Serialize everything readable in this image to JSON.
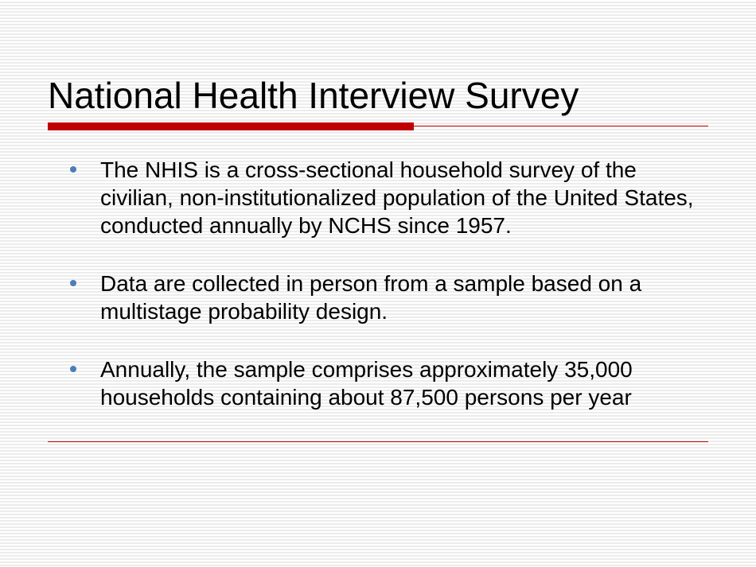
{
  "slide": {
    "title": "National Health Interview Survey",
    "title_color": "#000000",
    "title_fontsize": 46,
    "underline_thick_color": "#c00000",
    "underline_thick_width": 460,
    "underline_thin_color": "#c00000",
    "background_stripe_light": "#ffffff",
    "background_stripe_dark": "#ececec",
    "bullet_color": "#4a7ebb",
    "body_fontsize": 28,
    "body_color": "#000000",
    "bullets": [
      "The NHIS is a cross-sectional household survey of the civilian, non-institutionalized population of the United States, conducted annually by NCHS since 1957.",
      "Data are collected in person from a sample based on a multistage probability design.",
      "Annually, the sample comprises approximately 35,000 households containing about 87,500 persons per year"
    ],
    "bottom_line_color": "#c00000"
  }
}
